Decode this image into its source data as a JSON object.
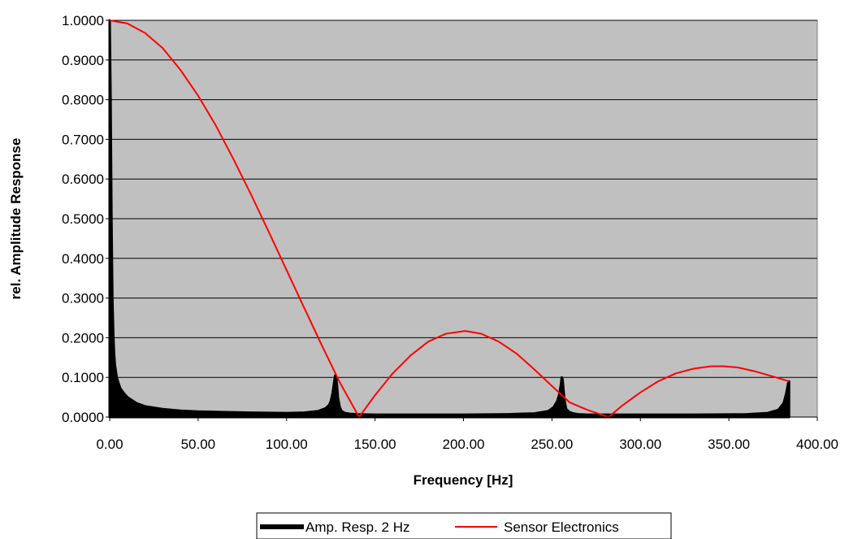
{
  "chart_data": {
    "type": "line",
    "title": "",
    "xlabel": "Frequency [Hz]",
    "ylabel": "rel. Amplitude Response",
    "xlim": [
      0,
      400
    ],
    "ylim": [
      0,
      1
    ],
    "x_ticks": [
      "0.00",
      "50.00",
      "100.00",
      "150.00",
      "200.00",
      "250.00",
      "300.00",
      "350.00",
      "400.00"
    ],
    "y_ticks": [
      "0.0000",
      "0.1000",
      "0.2000",
      "0.3000",
      "0.4000",
      "0.5000",
      "0.6000",
      "0.7000",
      "0.8000",
      "0.9000",
      "1.0000"
    ],
    "grid": "horizontal",
    "plot_background": "#c0c0c0",
    "legend_position": "bottom",
    "series": [
      {
        "name": "Amp. Resp. 2 Hz",
        "color": "#000000",
        "style": "thick filled",
        "x": [
          0,
          0.5,
          1,
          1.5,
          2,
          2.5,
          3,
          4,
          5,
          6,
          8,
          10,
          15,
          20,
          30,
          40,
          50,
          60,
          80,
          100,
          110,
          118,
          122,
          124,
          125,
          126,
          127,
          127.5,
          128,
          128.5,
          129,
          130,
          131,
          133,
          136,
          140,
          150,
          175,
          200,
          225,
          240,
          248,
          251,
          253,
          254,
          255,
          255.5,
          256,
          256.5,
          257,
          258,
          260,
          262,
          265,
          270,
          300,
          330,
          360,
          372,
          378,
          381,
          382.5,
          383.5,
          384
        ],
        "y": [
          1.0,
          0.8,
          0.5,
          0.3,
          0.21,
          0.16,
          0.13,
          0.1,
          0.085,
          0.072,
          0.06,
          0.05,
          0.035,
          0.027,
          0.02,
          0.016,
          0.014,
          0.013,
          0.011,
          0.01,
          0.011,
          0.015,
          0.022,
          0.03,
          0.04,
          0.06,
          0.09,
          0.105,
          0.1,
          0.08,
          0.05,
          0.025,
          0.015,
          0.01,
          0.008,
          0.007,
          0.006,
          0.006,
          0.006,
          0.007,
          0.009,
          0.015,
          0.025,
          0.04,
          0.055,
          0.08,
          0.1,
          0.095,
          0.07,
          0.045,
          0.02,
          0.012,
          0.009,
          0.007,
          0.006,
          0.006,
          0.006,
          0.007,
          0.01,
          0.018,
          0.035,
          0.06,
          0.085,
          0.09
        ]
      },
      {
        "name": "Sensor Electronics",
        "color": "#ff0000",
        "style": "line",
        "x": [
          0,
          10,
          20,
          30,
          40,
          50,
          60,
          70,
          80,
          90,
          100,
          110,
          120,
          130,
          141,
          150,
          160,
          170,
          180,
          190,
          201,
          210,
          220,
          230,
          240,
          250,
          260,
          270,
          282,
          290,
          300,
          310,
          320,
          330,
          340,
          347,
          355,
          365,
          375,
          384
        ],
        "y": [
          1.0,
          0.992,
          0.968,
          0.93,
          0.875,
          0.81,
          0.735,
          0.65,
          0.56,
          0.466,
          0.37,
          0.275,
          0.18,
          0.088,
          0.0,
          0.055,
          0.11,
          0.155,
          0.19,
          0.21,
          0.217,
          0.21,
          0.19,
          0.16,
          0.12,
          0.078,
          0.037,
          0.018,
          0.0,
          0.03,
          0.062,
          0.09,
          0.11,
          0.122,
          0.128,
          0.128,
          0.125,
          0.115,
          0.102,
          0.09
        ]
      }
    ]
  }
}
